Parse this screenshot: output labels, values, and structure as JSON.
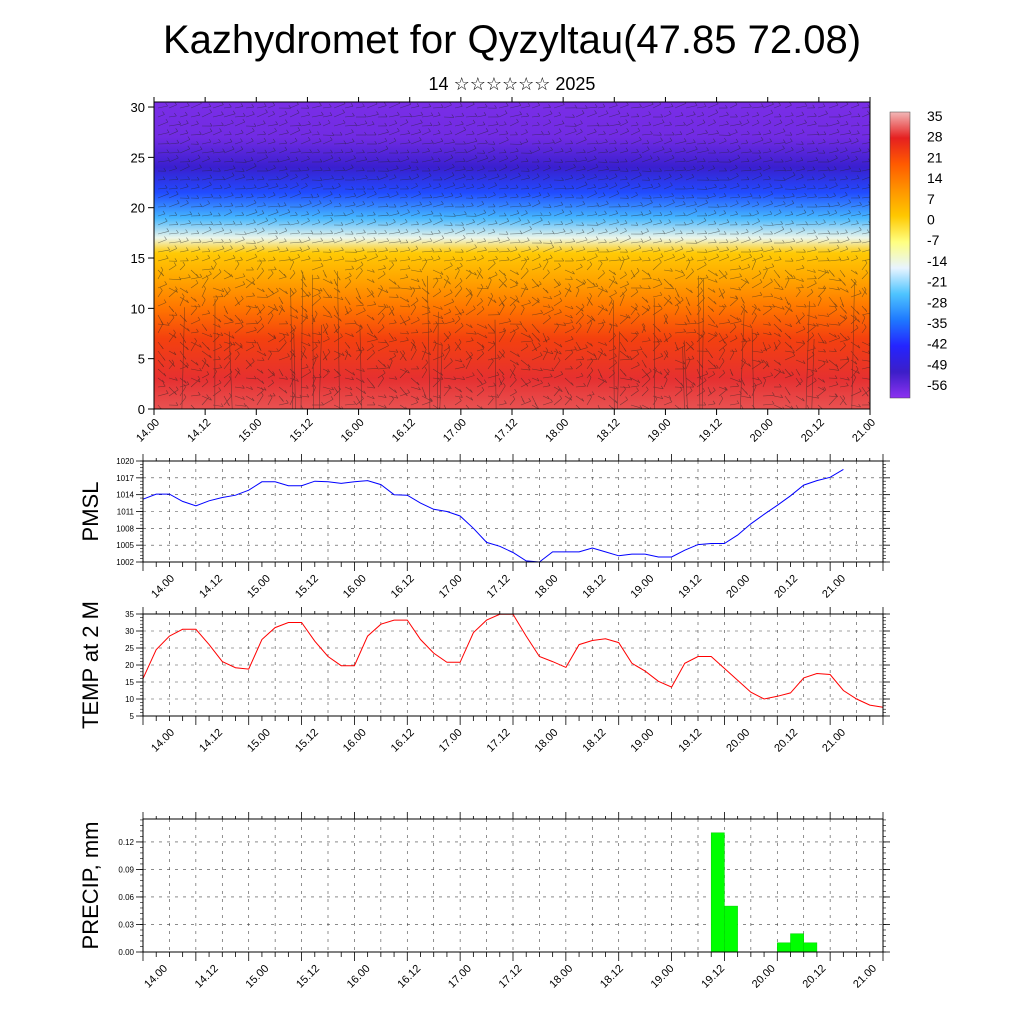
{
  "page": {
    "title": "Kazhydromet for Qyzyltau(47.85 72.08)",
    "subtitle": "14 ☆☆☆☆☆☆ 2025"
  },
  "colors": {
    "pmsl_line": "#0000ff",
    "temp_line": "#ff0000",
    "precip_bar": "#00ff00",
    "precip_outline": "#00cc00",
    "colorbar": [
      "#f2b8b8",
      "#e52020",
      "#ff5a00",
      "#ff9400",
      "#ffc800",
      "#ffff80",
      "#e8f4ff",
      "#4ec4ff",
      "#1e78ff",
      "#2424ff",
      "#3c1ec8",
      "#8c32f0"
    ]
  },
  "chart_data": [
    {
      "type": "heatmap",
      "title": "",
      "description": "Time-height cross-section of temperature with wind barbs",
      "x_ticks": [
        "14.00",
        "14.12",
        "15.00",
        "15.12",
        "16.00",
        "16.12",
        "17.00",
        "17.12",
        "18.00",
        "18.12",
        "19.00",
        "19.12",
        "20.00",
        "20.12",
        "21.00"
      ],
      "y_ticks": [
        "0",
        "5",
        "10",
        "15",
        "20",
        "25",
        "30"
      ],
      "ylim": [
        0,
        30.5
      ],
      "colorbar_labels": [
        "35",
        "28",
        "21",
        "14",
        "7",
        "0",
        "-7",
        "-14",
        "-21",
        "-28",
        "-35",
        "-42",
        "-49",
        "-56"
      ],
      "colorbar_range": [
        -60,
        38
      ],
      "layers": [
        {
          "y_top": 30.5,
          "temp": -58
        },
        {
          "y_top": 27,
          "temp": -57
        },
        {
          "y_top": 24,
          "temp": -50
        },
        {
          "y_top": 21.5,
          "temp": -38
        },
        {
          "y_top": 19,
          "temp": -26
        },
        {
          "y_top": 17,
          "temp": -14
        },
        {
          "y_top": 15.5,
          "temp": 2
        },
        {
          "y_top": 13,
          "temp": 8
        },
        {
          "y_top": 10,
          "temp": 16
        },
        {
          "y_top": 7,
          "temp": 24
        },
        {
          "y_top": 3,
          "temp": 30
        },
        {
          "y_top": 0,
          "temp": 32
        }
      ]
    },
    {
      "type": "line",
      "ylabel": "PMSL",
      "x_ticks": [
        "14.00",
        "14.12",
        "15.00",
        "15.12",
        "16.00",
        "16.12",
        "17.00",
        "17.12",
        "18.00",
        "18.12",
        "19.00",
        "19.12",
        "20.00",
        "20.12",
        "21.00"
      ],
      "y_ticks": [
        "1002",
        "1005",
        "1008",
        "1011",
        "1014",
        "1017",
        "1020"
      ],
      "ylim": [
        1002,
        1020
      ],
      "x_hours_step": 3,
      "values": [
        1013.2,
        1014.1,
        1014.1,
        1012.8,
        1012.0,
        1012.9,
        1013.5,
        1013.9,
        1014.8,
        1016.3,
        1016.3,
        1015.6,
        1015.6,
        1016.4,
        1016.3,
        1016.0,
        1016.3,
        1016.5,
        1015.8,
        1014.0,
        1013.9,
        1012.5,
        1011.4,
        1011.0,
        1010.2,
        1008.0,
        1005.5,
        1004.8,
        1003.7,
        1002.2,
        1002.0,
        1003.8,
        1003.8,
        1003.8,
        1004.5,
        1003.8,
        1003.1,
        1003.4,
        1003.4,
        1002.9,
        1002.9,
        1004.1,
        1005.1,
        1005.3,
        1005.3,
        1006.8,
        1008.8,
        1010.5,
        1012.1,
        1013.8,
        1015.7,
        1016.5,
        1017.1,
        1018.5
      ]
    },
    {
      "type": "line",
      "ylabel": "TEMP at 2 M",
      "x_ticks": [
        "14.00",
        "14.12",
        "15.00",
        "15.12",
        "16.00",
        "16.12",
        "17.00",
        "17.12",
        "18.00",
        "18.12",
        "19.00",
        "19.12",
        "20.00",
        "20.12",
        "21.00"
      ],
      "y_ticks": [
        "5",
        "10",
        "15",
        "20",
        "25",
        "30",
        "35"
      ],
      "ylim": [
        5,
        35
      ],
      "x_hours_step": 3,
      "values": [
        16.0,
        24.5,
        28.5,
        30.5,
        30.5,
        26.0,
        21.0,
        19.2,
        18.8,
        27.5,
        31.0,
        32.5,
        32.5,
        27.0,
        22.5,
        19.8,
        19.8,
        28.5,
        32.0,
        33.2,
        33.2,
        27.5,
        23.5,
        20.8,
        20.8,
        29.5,
        33.2,
        34.9,
        34.9,
        28.5,
        22.5,
        21.0,
        19.3,
        26.0,
        27.2,
        27.7,
        26.6,
        20.5,
        18.2,
        15.2,
        13.5,
        20.5,
        22.5,
        22.5,
        19.0,
        15.5,
        12.0,
        10.0,
        10.8,
        11.8,
        16.2,
        17.5,
        17.2,
        12.5,
        10.0,
        8.2,
        7.6
      ]
    },
    {
      "type": "bar",
      "ylabel": "PRECIP, mm",
      "x_ticks": [
        "14.00",
        "14.12",
        "15.00",
        "15.12",
        "16.00",
        "16.12",
        "17.00",
        "17.12",
        "18.00",
        "18.12",
        "19.00",
        "19.12",
        "20.00",
        "20.12",
        "21.00"
      ],
      "y_ticks": [
        "0.00",
        "0.03",
        "0.06",
        "0.09",
        "0.12"
      ],
      "ylim": [
        0,
        0.145
      ],
      "bars_hours": [
        {
          "hour": 129,
          "value": 0.13
        },
        {
          "hour": 132,
          "value": 0.05
        },
        {
          "hour": 144,
          "value": 0.01
        },
        {
          "hour": 147,
          "value": 0.02
        },
        {
          "hour": 150,
          "value": 0.01
        }
      ]
    }
  ]
}
